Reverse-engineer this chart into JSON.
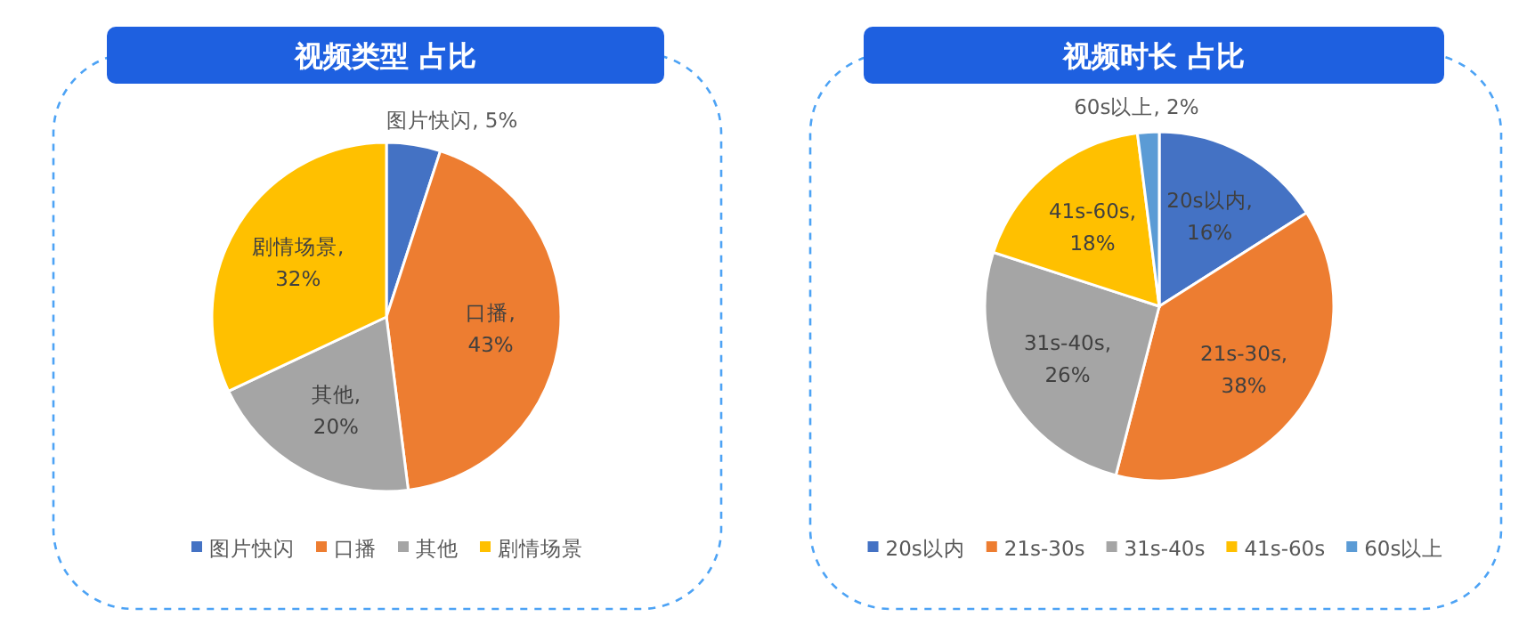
{
  "chart_data": [
    {
      "type": "pie",
      "title": "视频类型 占比",
      "categories": [
        "图片快闪",
        "口播",
        "其他",
        "剧情场景"
      ],
      "values": [
        5,
        43,
        20,
        32
      ],
      "colors": [
        "#4472c4",
        "#ed7d31",
        "#a5a5a5",
        "#ffc000"
      ],
      "value_labels": [
        "图片快闪, 5%",
        "口播, 43%",
        "其他, 20%",
        "剧情场景, 32%"
      ],
      "legend": "bottom"
    },
    {
      "type": "pie",
      "title": "视频时长 占比",
      "categories": [
        "20s以内",
        "21s-30s",
        "31s-40s",
        "41s-60s",
        "60s以上"
      ],
      "values": [
        16,
        38,
        26,
        18,
        2
      ],
      "colors": [
        "#4472c4",
        "#ed7d31",
        "#a5a5a5",
        "#ffc000",
        "#5b9bd5"
      ],
      "value_labels": [
        "20s以内, 16%",
        "21s-30s, 38%",
        "31s-40s, 26%",
        "41s-60s, 18%",
        "60s以上, 2%"
      ],
      "legend": "bottom"
    }
  ]
}
